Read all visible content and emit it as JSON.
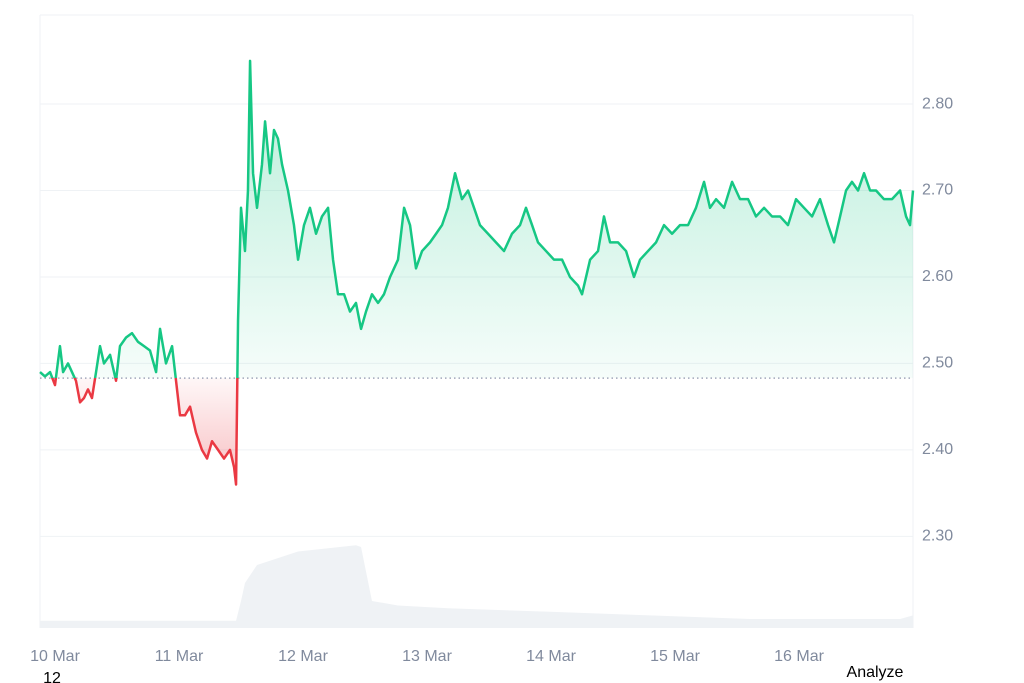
{
  "chart_data": {
    "type": "line",
    "x": [
      -0.121,
      -0.081,
      -0.04,
      0,
      0.04,
      0.065,
      0.105,
      0.137,
      0.169,
      0.202,
      0.234,
      0.266,
      0.298,
      0.331,
      0.363,
      0.395,
      0.444,
      0.492,
      0.524,
      0.573,
      0.621,
      0.669,
      0.718,
      0.766,
      0.815,
      0.847,
      0.895,
      0.944,
      0.976,
      1.008,
      1.048,
      1.089,
      1.137,
      1.185,
      1.226,
      1.266,
      1.315,
      1.363,
      1.411,
      1.444,
      1.46,
      1.476,
      1.5,
      1.532,
      1.556,
      1.573,
      1.597,
      1.629,
      1.669,
      1.694,
      1.734,
      1.766,
      1.798,
      1.831,
      1.879,
      1.927,
      1.96,
      2.008,
      2.056,
      2.105,
      2.153,
      2.202,
      2.242,
      2.282,
      2.331,
      2.379,
      2.427,
      2.468,
      2.508,
      2.556,
      2.605,
      2.653,
      2.702,
      2.766,
      2.815,
      2.863,
      2.911,
      2.96,
      3.024,
      3.073,
      3.121,
      3.169,
      3.226,
      3.282,
      3.331,
      3.379,
      3.427,
      3.492,
      3.556,
      3.621,
      3.685,
      3.75,
      3.798,
      3.847,
      3.895,
      3.96,
      4.024,
      4.089,
      4.153,
      4.218,
      4.25,
      4.315,
      4.379,
      4.427,
      4.476,
      4.54,
      4.605,
      4.669,
      4.718,
      4.782,
      4.847,
      4.911,
      4.976,
      5.04,
      5.105,
      5.169,
      5.234,
      5.282,
      5.331,
      5.395,
      5.46,
      5.524,
      5.589,
      5.653,
      5.718,
      5.782,
      5.847,
      5.911,
      5.976,
      6.04,
      6.105,
      6.169,
      6.234,
      6.282,
      6.331,
      6.379,
      6.427,
      6.476,
      6.524,
      6.573,
      6.621,
      6.685,
      6.75,
      6.815,
      6.863,
      6.895,
      6.919
    ],
    "series": [
      {
        "color": "#16c784",
        "below_color": "#ea3943",
        "values": [
          2.49,
          2.485,
          2.49,
          2.475,
          2.52,
          2.49,
          2.5,
          2.49,
          2.48,
          2.455,
          2.46,
          2.47,
          2.46,
          2.49,
          2.52,
          2.5,
          2.51,
          2.48,
          2.52,
          2.53,
          2.535,
          2.525,
          2.52,
          2.515,
          2.49,
          2.54,
          2.5,
          2.52,
          2.48,
          2.44,
          2.44,
          2.45,
          2.42,
          2.4,
          2.39,
          2.41,
          2.4,
          2.39,
          2.4,
          2.38,
          2.36,
          2.55,
          2.68,
          2.63,
          2.7,
          2.85,
          2.72,
          2.68,
          2.73,
          2.78,
          2.72,
          2.77,
          2.76,
          2.73,
          2.7,
          2.66,
          2.62,
          2.66,
          2.68,
          2.65,
          2.67,
          2.68,
          2.62,
          2.58,
          2.58,
          2.56,
          2.57,
          2.54,
          2.56,
          2.58,
          2.57,
          2.58,
          2.6,
          2.62,
          2.68,
          2.66,
          2.61,
          2.63,
          2.64,
          2.65,
          2.66,
          2.68,
          2.72,
          2.69,
          2.7,
          2.68,
          2.66,
          2.65,
          2.64,
          2.63,
          2.65,
          2.66,
          2.68,
          2.66,
          2.64,
          2.63,
          2.62,
          2.62,
          2.6,
          2.59,
          2.58,
          2.62,
          2.63,
          2.67,
          2.64,
          2.64,
          2.63,
          2.6,
          2.62,
          2.63,
          2.64,
          2.66,
          2.65,
          2.66,
          2.66,
          2.68,
          2.71,
          2.68,
          2.69,
          2.68,
          2.71,
          2.69,
          2.69,
          2.67,
          2.68,
          2.67,
          2.67,
          2.66,
          2.69,
          2.68,
          2.67,
          2.69,
          2.66,
          2.64,
          2.67,
          2.7,
          2.71,
          2.7,
          2.72,
          2.7,
          2.7,
          2.69,
          2.69,
          2.7,
          2.67,
          2.66,
          2.7
        ]
      }
    ],
    "baseline": 2.483,
    "volume": {
      "color": "#eff2f5",
      "x": [
        -0.121,
        1.46,
        1.5,
        1.532,
        1.629,
        1.96,
        2.427,
        2.468,
        2.556,
        2.766,
        3.169,
        3.992,
        4.798,
        5.605,
        6.815,
        6.919
      ],
      "values": [
        8,
        8,
        30,
        50,
        70,
        85,
        92,
        90,
        30,
        25,
        22,
        18,
        14,
        10,
        10,
        14
      ],
      "ylim": [
        0,
        100
      ]
    },
    "xlim": [
      -0.121,
      6.919
    ],
    "xticks": [
      {
        "value": 0,
        "label": "10 Mar"
      },
      {
        "value": 1,
        "label": "11 Mar"
      },
      {
        "value": 2,
        "label": "12 Mar"
      },
      {
        "value": 3,
        "label": "13 Mar"
      },
      {
        "value": 4,
        "label": "14 Mar"
      },
      {
        "value": 5,
        "label": "15 Mar"
      },
      {
        "value": 6,
        "label": "16 Mar"
      }
    ],
    "ylim": [
      2.194,
      2.903
    ],
    "yticks": [
      {
        "value": 2.3,
        "label": "2.30"
      },
      {
        "value": 2.4,
        "label": "2.40"
      },
      {
        "value": 2.5,
        "label": "2.50"
      },
      {
        "value": 2.6,
        "label": "2.60"
      },
      {
        "value": 2.7,
        "label": "2.70"
      },
      {
        "value": 2.8,
        "label": "2.80"
      }
    ],
    "grid": true
  },
  "footer": {
    "left": "12",
    "button": "Analyze"
  }
}
